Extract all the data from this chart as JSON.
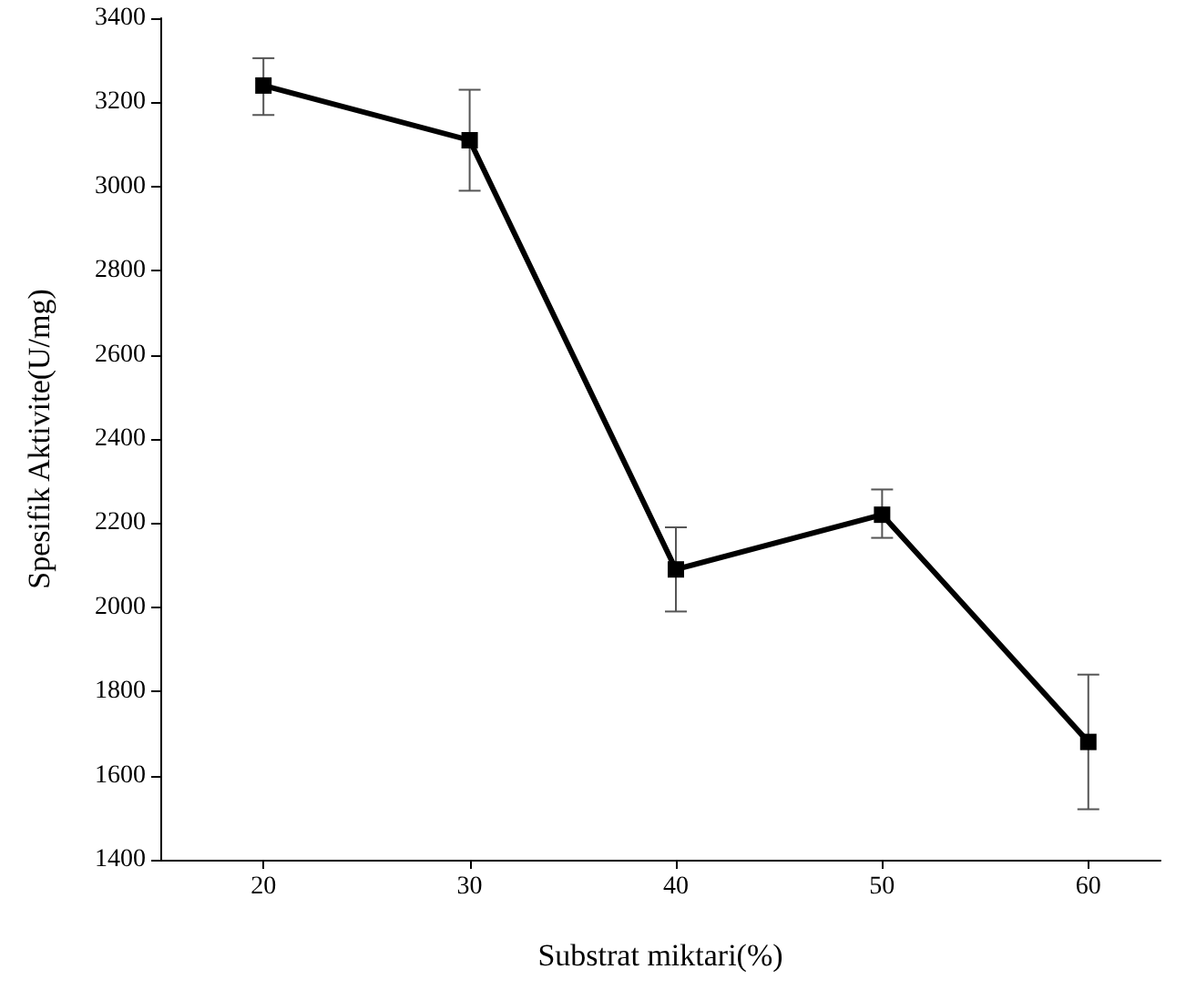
{
  "chart_data": {
    "type": "line",
    "xlabel": "Substrat miktari(%)",
    "ylabel": "Spesifik Aktivite(U/mg)",
    "x": [
      20,
      30,
      40,
      50,
      60
    ],
    "series": [
      {
        "color": "#000000",
        "values": [
          3240,
          3110,
          2090,
          2220,
          1680
        ],
        "errors": [
          [
            3170,
            3305
          ],
          [
            2990,
            3230
          ],
          [
            1990,
            2190
          ],
          [
            2165,
            2280
          ],
          [
            1520,
            1840
          ]
        ]
      }
    ],
    "xlim": [
      15,
      63.5
    ],
    "xticks": [
      20,
      30,
      40,
      50,
      60
    ],
    "ylim": [
      1400,
      3400
    ],
    "yticks": [
      1400,
      1600,
      1800,
      2000,
      2200,
      2400,
      2600,
      2800,
      3000,
      3200,
      3400
    ],
    "marker": "square",
    "line_style": "solid",
    "grid": false
  }
}
